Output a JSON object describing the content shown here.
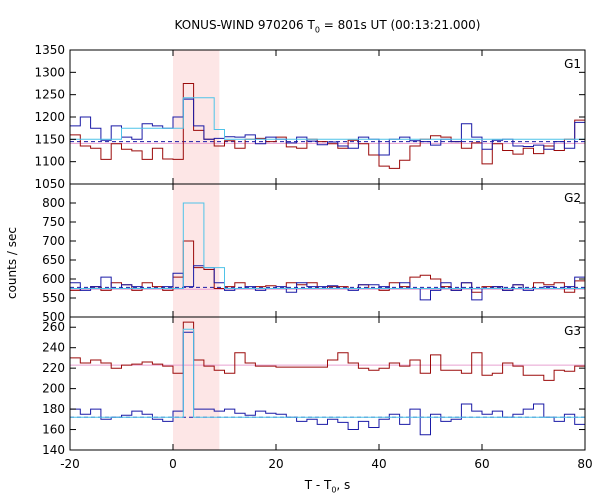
{
  "title": {
    "prefix": "KONUS-WIND 970206 T",
    "sub": "0",
    "suffix": " = 801s UT (00:13:21.000)"
  },
  "xlabel": {
    "prefix": "T - T",
    "sub": "0",
    "suffix": ", s"
  },
  "ylabel": "counts / sec",
  "colors": {
    "dark_red": "#9b0a0a",
    "dark_blue": "#1a1aa6",
    "light_blue": "#4fc3e8",
    "pink_line": "#e8a0d0",
    "highlight": "#fde6e6"
  },
  "chart_data": {
    "type": "line",
    "x_range": [
      -20,
      80
    ],
    "x_ticks": [
      -20,
      0,
      20,
      40,
      60,
      80
    ],
    "highlight_interval": [
      0,
      9
    ],
    "bin_edges": [
      -20,
      -18,
      -16,
      -14,
      -12,
      -10,
      -8,
      -6,
      -4,
      -2,
      0,
      2,
      4,
      6,
      8,
      10,
      12,
      14,
      16,
      18,
      20,
      22,
      24,
      26,
      28,
      30,
      32,
      34,
      36,
      38,
      40,
      42,
      44,
      46,
      48,
      50,
      52,
      54,
      56,
      58,
      60,
      62,
      64,
      66,
      68,
      70,
      72,
      74,
      76,
      78,
      80
    ],
    "panels": [
      {
        "label": "G1",
        "ylim": [
          1050,
          1350
        ],
        "yticks": [
          1050,
          1100,
          1150,
          1200,
          1250,
          1300,
          1350
        ],
        "series": [
          {
            "color_key": "dark_red",
            "values": [
              1160,
              1135,
              1130,
              1105,
              1140,
              1128,
              1124,
              1105,
              1130,
              1106,
              1105,
              1275,
              1170,
              1150,
              1135,
              1147,
              1130,
              1150,
              1152,
              1145,
              1155,
              1133,
              1130,
              1150,
              1145,
              1140,
              1130,
              1148,
              1140,
              1115,
              1090,
              1085,
              1103,
              1135,
              1150,
              1158,
              1155,
              1145,
              1130,
              1142,
              1095,
              1140,
              1125,
              1117,
              1130,
              1118,
              1135,
              1125,
              1150,
              1193
            ]
          },
          {
            "color_key": "dark_blue",
            "values": [
              1180,
              1200,
              1175,
              1148,
              1180,
              1155,
              1150,
              1185,
              1180,
              1175,
              1200,
              1240,
              1180,
              1150,
              1152,
              1156,
              1155,
              1160,
              1140,
              1155,
              1150,
              1142,
              1155,
              1146,
              1138,
              1144,
              1135,
              1130,
              1155,
              1150,
              1115,
              1150,
              1155,
              1147,
              1145,
              1137,
              1150,
              1145,
              1185,
              1155,
              1128,
              1148,
              1150,
              1135,
              1134,
              1137,
              1128,
              1145,
              1130,
              1188
            ]
          },
          {
            "color_key": "light_blue",
            "values": [
              1150,
              1150,
              1150,
              1150,
              1150,
              1175,
              1175,
              1175,
              1175,
              1175,
              1175,
              1243,
              1243,
              1243,
              1172,
              1150,
              1150,
              1150,
              1150,
              1150,
              1150,
              1150,
              1150,
              1150,
              1150,
              1150,
              1150,
              1150,
              1150,
              1150,
              1150,
              1150,
              1150,
              1150,
              1150,
              1150,
              1150,
              1150,
              1150,
              1150,
              1150,
              1150,
              1150,
              1150,
              1150,
              1150,
              1150,
              1150,
              1150,
              1150
            ]
          }
        ],
        "hlines": [
          {
            "color_key": "dark_blue",
            "value": 1145,
            "dash": true
          },
          {
            "color_key": "pink_line",
            "value": 1141,
            "dash": false
          }
        ]
      },
      {
        "label": "G2",
        "ylim": [
          500,
          850
        ],
        "yticks": [
          500,
          550,
          600,
          650,
          700,
          750,
          800
        ],
        "series": [
          {
            "color_key": "dark_red",
            "values": [
              570,
              575,
              580,
              570,
              590,
              585,
              570,
              590,
              580,
              570,
              605,
              700,
              630,
              625,
              575,
              580,
              590,
              575,
              580,
              582,
              575,
              590,
              585,
              590,
              575,
              580,
              580,
              575,
              585,
              575,
              570,
              590,
              580,
              605,
              610,
              600,
              580,
              570,
              590,
              565,
              580,
              580,
              570,
              585,
              575,
              590,
              585,
              590,
              565,
              595
            ]
          },
          {
            "color_key": "dark_blue",
            "values": [
              590,
              570,
              580,
              605,
              575,
              585,
              580,
              575,
              575,
              580,
              615,
              580,
              635,
              630,
              590,
              570,
              575,
              580,
              570,
              575,
              580,
              565,
              590,
              580,
              580,
              582,
              575,
              570,
              585,
              585,
              580,
              575,
              590,
              575,
              545,
              570,
              590,
              570,
              590,
              545,
              575,
              580,
              570,
              585,
              570,
              575,
              580,
              575,
              580,
              605
            ]
          },
          {
            "color_key": "light_blue",
            "values": [
              575,
              575,
              575,
              575,
              575,
              575,
              575,
              575,
              575,
              575,
              575,
              800,
              800,
              630,
              630,
              575,
              575,
              575,
              575,
              575,
              575,
              575,
              575,
              575,
              575,
              575,
              575,
              575,
              575,
              575,
              575,
              575,
              575,
              575,
              575,
              575,
              575,
              575,
              575,
              575,
              575,
              575,
              575,
              575,
              575,
              575,
              575,
              575,
              575,
              575
            ]
          }
        ],
        "hlines": [
          {
            "color_key": "dark_blue",
            "value": 578,
            "dash": true
          },
          {
            "color_key": "pink_line",
            "value": 573,
            "dash": false
          }
        ]
      },
      {
        "label": "G3",
        "ylim": [
          140,
          270
        ],
        "yticks": [
          140,
          160,
          180,
          200,
          220,
          240,
          260
        ],
        "series": [
          {
            "color_key": "dark_red",
            "values": [
              230,
              225,
              228,
              225,
              220,
              223,
              224,
              226,
              224,
              222,
              215,
              265,
              228,
              222,
              218,
              215,
              235,
              225,
              222,
              222,
              221,
              221,
              221,
              221,
              221,
              228,
              235,
              225,
              220,
              218,
              220,
              225,
              222,
              228,
              215,
              233,
              218,
              218,
              215,
              235,
              213,
              215,
              225,
              222,
              213,
              213,
              208,
              218,
              217,
              222
            ]
          },
          {
            "color_key": "dark_blue",
            "values": [
              180,
              175,
              180,
              170,
              172,
              174,
              178,
              175,
              170,
              168,
              178,
              255,
              180,
              180,
              178,
              180,
              176,
              174,
              178,
              176,
              175,
              172,
              168,
              170,
              165,
              170,
              167,
              160,
              168,
              162,
              170,
              175,
              165,
              180,
              155,
              175,
              168,
              170,
              185,
              178,
              175,
              178,
              172,
              175,
              180,
              185,
              172,
              168,
              175,
              165
            ]
          },
          {
            "color_key": "light_blue",
            "values": [
              172,
              172,
              172,
              172,
              172,
              172,
              172,
              172,
              172,
              172,
              172,
              258,
              172,
              172,
              172,
              172,
              172,
              172,
              172,
              172,
              172,
              172,
              172,
              172,
              172,
              172,
              172,
              172,
              172,
              172,
              172,
              172,
              172,
              172,
              172,
              172,
              172,
              172,
              172,
              172,
              172,
              172,
              172,
              172,
              172,
              172,
              172,
              172,
              172,
              172
            ]
          }
        ],
        "hlines": [
          {
            "color_key": "pink_line",
            "value": 223,
            "dash": false
          },
          {
            "color_key": "dark_blue",
            "value": 172,
            "dash": true
          }
        ]
      }
    ]
  }
}
